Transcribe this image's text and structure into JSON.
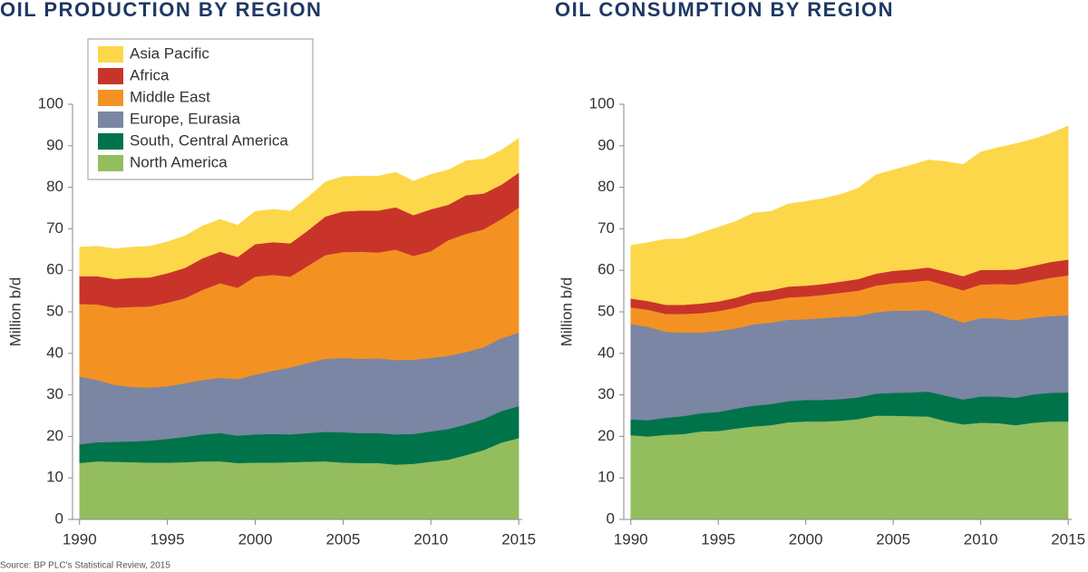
{
  "chart_data": [
    {
      "type": "stacked_area",
      "title": "OIL PRODUCTION BY REGION",
      "ylabel": "Million b/d",
      "x": [
        1990,
        1991,
        1992,
        1993,
        1994,
        1995,
        1996,
        1997,
        1998,
        1999,
        2000,
        2001,
        2002,
        2003,
        2004,
        2005,
        2006,
        2007,
        2008,
        2009,
        2010,
        2011,
        2012,
        2013,
        2014,
        2015
      ],
      "xlim": [
        1989.6,
        2015.2
      ],
      "xticks": [
        1990,
        1995,
        2000,
        2005,
        2010,
        2015
      ],
      "ylim": [
        0,
        100
      ],
      "yticks": [
        0,
        10,
        20,
        30,
        40,
        50,
        60,
        70,
        80,
        90,
        100
      ],
      "legend": "upper left",
      "series": [
        {
          "name": "North America",
          "color": "#94bd5e",
          "values": [
            13.6,
            14.0,
            13.9,
            13.8,
            13.7,
            13.7,
            13.8,
            14.0,
            14.0,
            13.6,
            13.7,
            13.7,
            13.8,
            13.9,
            14.0,
            13.7,
            13.6,
            13.6,
            13.2,
            13.4,
            13.9,
            14.4,
            15.5,
            16.7,
            18.5,
            19.6
          ]
        },
        {
          "name": "South, Central America",
          "color": "#00734a",
          "values": [
            4.5,
            4.6,
            4.8,
            5.0,
            5.3,
            5.7,
            6.1,
            6.5,
            6.8,
            6.6,
            6.8,
            6.9,
            6.7,
            6.9,
            7.1,
            7.3,
            7.2,
            7.2,
            7.3,
            7.2,
            7.3,
            7.4,
            7.4,
            7.5,
            7.6,
            7.7
          ]
        },
        {
          "name": "Europe, Eurasia",
          "color": "#7a86a3",
          "values": [
            16.3,
            15.0,
            13.7,
            13.1,
            12.8,
            12.7,
            12.9,
            13.1,
            13.3,
            13.6,
            14.4,
            15.2,
            16.1,
            16.9,
            17.6,
            17.9,
            17.9,
            18.0,
            17.9,
            17.9,
            17.7,
            17.6,
            17.4,
            17.3,
            17.5,
            17.7
          ]
        },
        {
          "name": "Middle East",
          "color": "#f39223",
          "values": [
            17.5,
            18.2,
            18.6,
            19.3,
            19.5,
            20.1,
            20.5,
            21.7,
            22.8,
            22.0,
            23.6,
            23.1,
            21.9,
            23.4,
            25.0,
            25.5,
            25.8,
            25.5,
            26.6,
            25.0,
            25.7,
            27.9,
            28.5,
            28.4,
            28.7,
            30.1
          ]
        },
        {
          "name": "Africa",
          "color": "#c9342a",
          "values": [
            6.7,
            6.8,
            6.9,
            7.0,
            7.0,
            7.1,
            7.3,
            7.6,
            7.6,
            7.4,
            7.8,
            7.9,
            8.0,
            8.5,
            9.3,
            9.8,
            9.9,
            10.1,
            10.2,
            9.8,
            10.1,
            8.5,
            9.3,
            8.6,
            8.3,
            8.4
          ]
        },
        {
          "name": "Asia Pacific",
          "color": "#fcd74a",
          "values": [
            7.0,
            7.2,
            7.3,
            7.4,
            7.5,
            7.6,
            7.7,
            7.8,
            7.8,
            7.7,
            7.9,
            7.9,
            7.8,
            8.0,
            8.3,
            8.4,
            8.3,
            8.3,
            8.4,
            8.2,
            8.4,
            8.4,
            8.3,
            8.3,
            8.3,
            8.3
          ]
        }
      ]
    },
    {
      "type": "stacked_area",
      "title": "OIL CONSUMPTION BY REGION",
      "ylabel": "Million b/d",
      "x": [
        1990,
        1991,
        1992,
        1993,
        1994,
        1995,
        1996,
        1997,
        1998,
        1999,
        2000,
        2001,
        2002,
        2003,
        2004,
        2005,
        2006,
        2007,
        2008,
        2009,
        2010,
        2011,
        2012,
        2013,
        2014,
        2015
      ],
      "xlim": [
        1989.6,
        2015.2
      ],
      "xticks": [
        1990,
        1995,
        2000,
        2005,
        2010,
        2015
      ],
      "ylim": [
        0,
        100
      ],
      "yticks": [
        0,
        10,
        20,
        30,
        40,
        50,
        60,
        70,
        80,
        90,
        100
      ],
      "series": [
        {
          "color": "#94bd5e",
          "values": [
            20.3,
            20.0,
            20.4,
            20.6,
            21.2,
            21.3,
            21.9,
            22.4,
            22.7,
            23.4,
            23.6,
            23.6,
            23.8,
            24.2,
            25.0,
            25.0,
            24.9,
            24.8,
            23.7,
            22.9,
            23.3,
            23.2,
            22.7,
            23.3,
            23.6,
            23.6
          ]
        },
        {
          "color": "#00734a",
          "values": [
            3.8,
            3.9,
            4.1,
            4.3,
            4.4,
            4.6,
            4.8,
            5.0,
            5.1,
            5.1,
            5.2,
            5.2,
            5.2,
            5.2,
            5.3,
            5.5,
            5.7,
            6.0,
            6.1,
            6.0,
            6.3,
            6.4,
            6.6,
            6.8,
            6.9,
            7.0
          ]
        },
        {
          "color": "#7a86a3",
          "values": [
            23.0,
            22.5,
            20.7,
            20.1,
            19.4,
            19.5,
            19.3,
            19.6,
            19.6,
            19.6,
            19.4,
            19.7,
            19.8,
            19.6,
            19.6,
            19.8,
            19.7,
            19.6,
            19.1,
            18.5,
            18.9,
            18.8,
            18.7,
            18.5,
            18.5,
            18.6
          ]
        },
        {
          "color": "#f39223",
          "values": [
            4.0,
            4.1,
            4.3,
            4.5,
            4.7,
            4.8,
            5.0,
            5.2,
            5.3,
            5.4,
            5.5,
            5.6,
            5.8,
            6.1,
            6.4,
            6.6,
            6.9,
            7.2,
            7.5,
            7.8,
            8.1,
            8.3,
            8.6,
            8.8,
            9.2,
            9.6
          ]
        },
        {
          "color": "#c9342a",
          "values": [
            2.1,
            2.1,
            2.2,
            2.2,
            2.3,
            2.3,
            2.4,
            2.5,
            2.5,
            2.6,
            2.6,
            2.6,
            2.7,
            2.8,
            2.9,
            3.0,
            3.0,
            3.1,
            3.3,
            3.4,
            3.5,
            3.4,
            3.6,
            3.7,
            3.8,
            3.8
          ]
        },
        {
          "color": "#fcd74a",
          "values": [
            12.8,
            14.1,
            15.8,
            15.9,
            17.0,
            17.9,
            18.4,
            19.1,
            19.0,
            19.9,
            20.3,
            20.6,
            21.0,
            21.9,
            23.8,
            24.3,
            25.1,
            25.9,
            26.5,
            26.9,
            28.4,
            29.5,
            30.3,
            30.5,
            31.0,
            32.2
          ]
        }
      ]
    }
  ],
  "source": "Source: BP PLC's Statistical Review, 2015"
}
